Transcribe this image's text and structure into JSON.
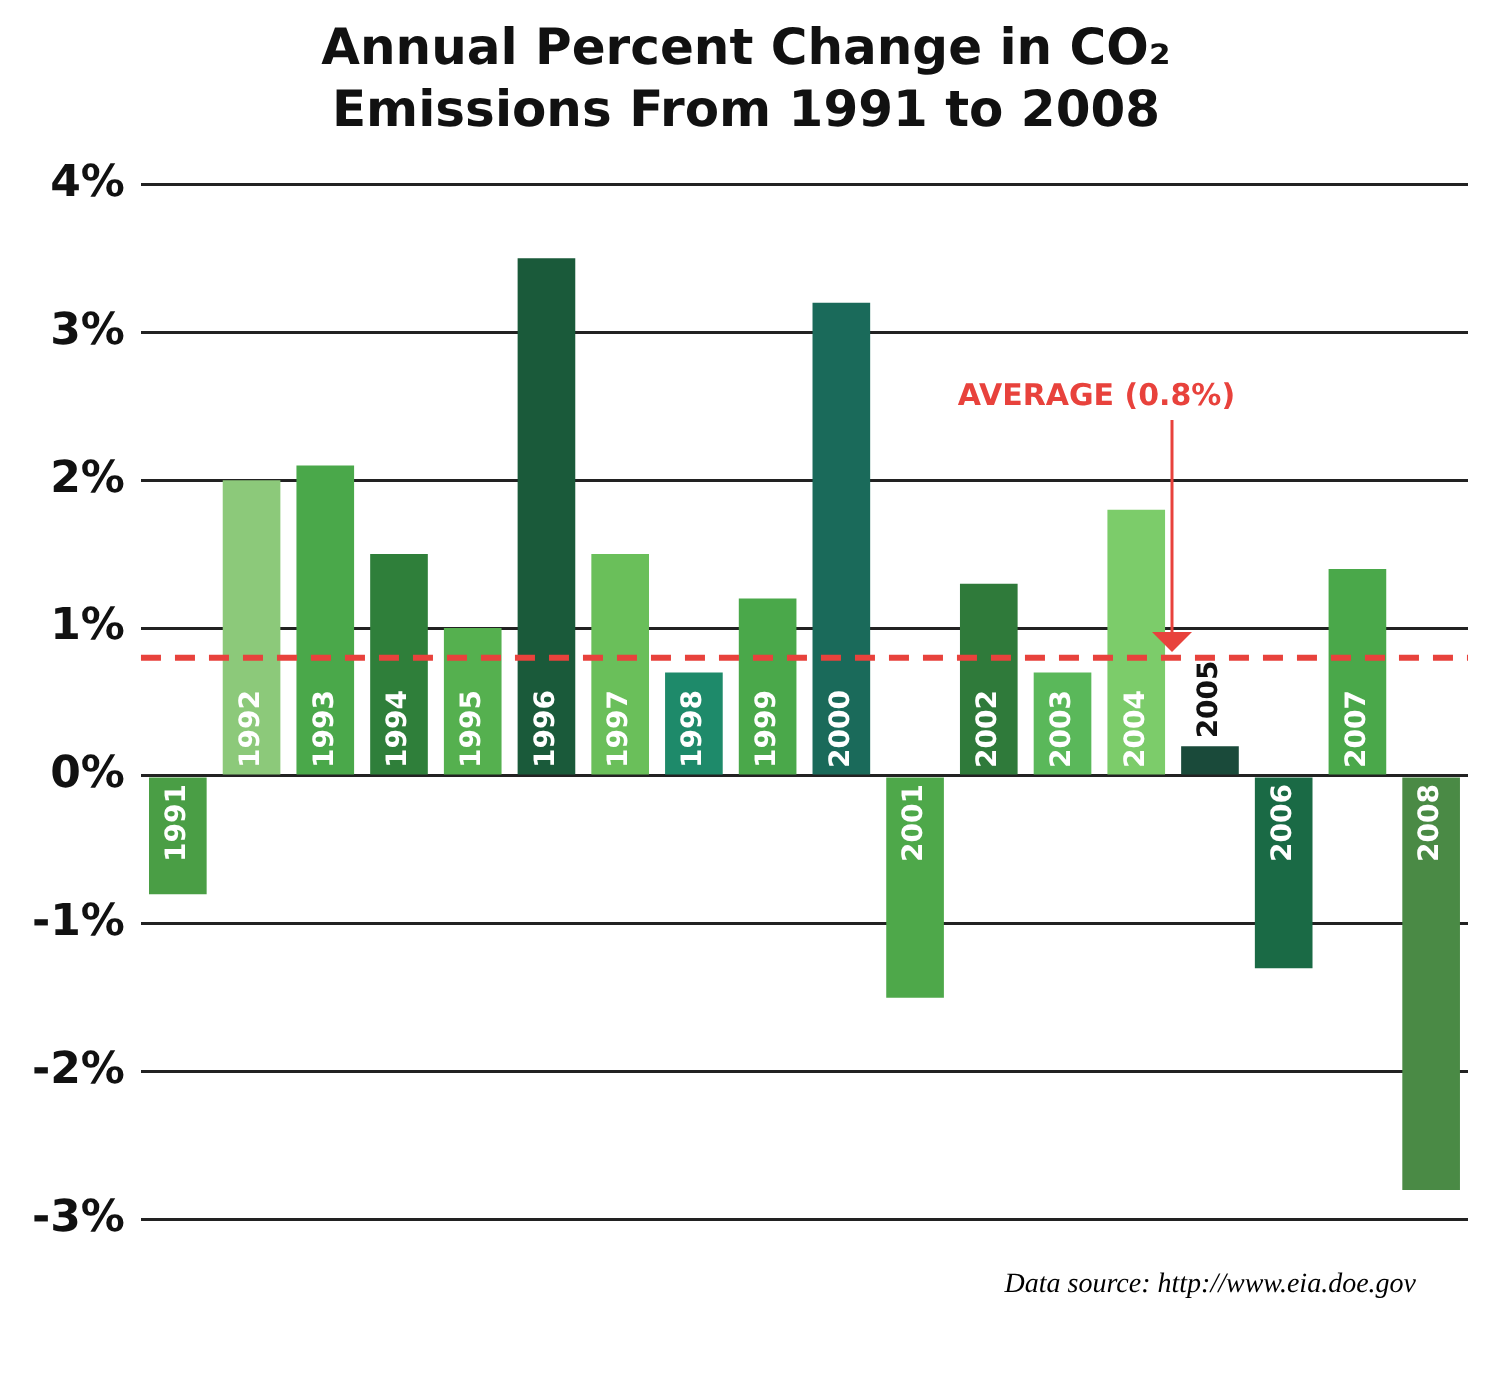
{
  "chart_data": {
    "type": "bar",
    "title": "Annual Percent Change in CO₂ Emissions From 1991 to 2008",
    "categories": [
      "1991",
      "1992",
      "1993",
      "1994",
      "1995",
      "1996",
      "1997",
      "1998",
      "1999",
      "2000",
      "2001",
      "2002",
      "2003",
      "2004",
      "2005",
      "2006",
      "2007",
      "2008"
    ],
    "values": [
      -0.8,
      2.0,
      2.1,
      1.5,
      1.0,
      3.5,
      1.5,
      0.7,
      1.2,
      3.2,
      -1.5,
      1.3,
      0.7,
      1.8,
      0.2,
      -1.3,
      1.4,
      -2.8
    ],
    "colors": [
      "#4a9e45",
      "#8cc97a",
      "#4aa84a",
      "#2f7f3a",
      "#55b04f",
      "#1a5a3a",
      "#6abf5a",
      "#1e8a6a",
      "#4aa84a",
      "#1a6a5a",
      "#4ea84a",
      "#2f7a3a",
      "#5ab85a",
      "#7ccc6a",
      "#1a4a3a",
      "#1a6a45",
      "#4aa84a",
      "#4a8a45"
    ],
    "ylim": [
      -3,
      4
    ],
    "yticks": [
      {
        "value": -3,
        "label": "-3%"
      },
      {
        "value": -2,
        "label": "-2%"
      },
      {
        "value": -1,
        "label": "-1%"
      },
      {
        "value": 0,
        "label": "0%"
      },
      {
        "value": 1,
        "label": "1%"
      },
      {
        "value": 2,
        "label": "2%"
      },
      {
        "value": 3,
        "label": "3%"
      },
      {
        "value": 4,
        "label": "4%"
      }
    ],
    "grid": "y",
    "legend": false,
    "tick_labels": "y",
    "ref_lines": [
      {
        "axis": "y",
        "value": 0.8,
        "label": "AVERAGE (0.8%)",
        "color": "#e8423c",
        "line_style": "dashed"
      }
    ],
    "annotations": [
      "Data source: http://www.eia.doe.gov"
    ]
  }
}
